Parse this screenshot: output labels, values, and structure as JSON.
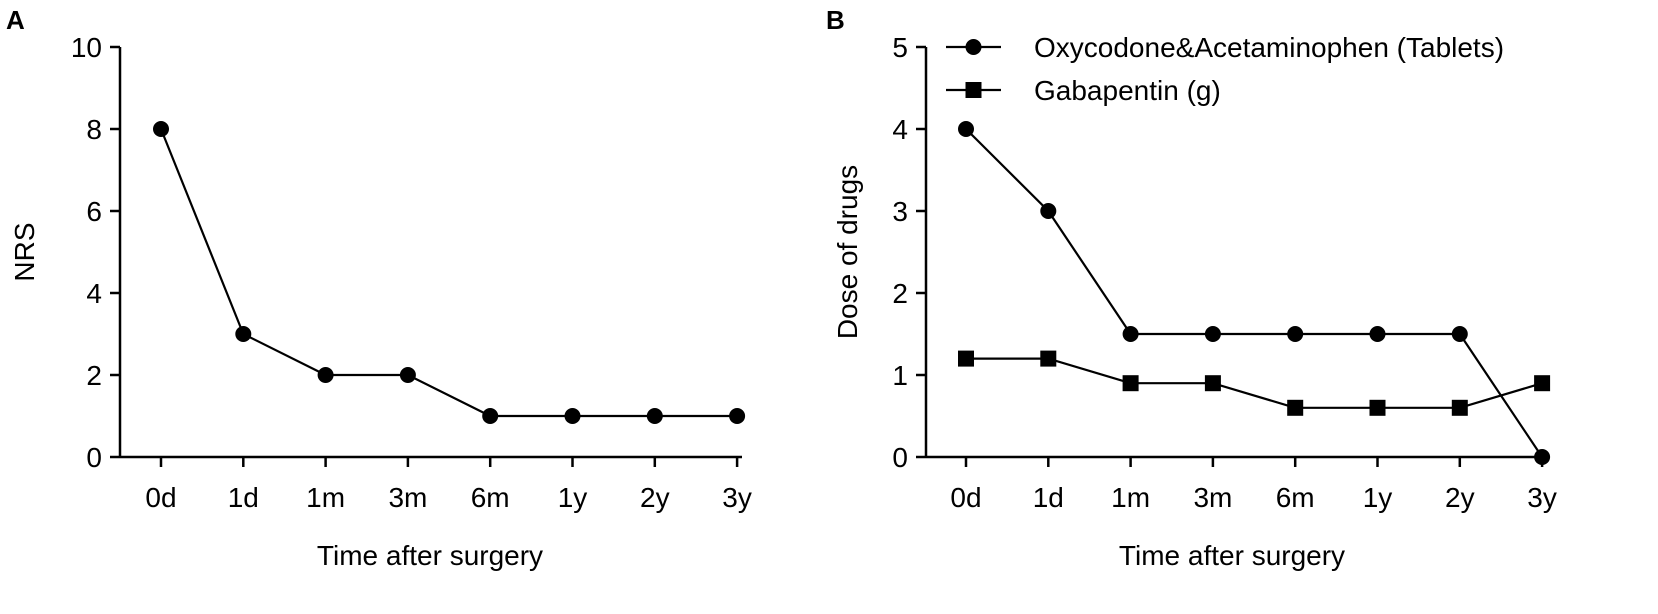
{
  "chart_data": [
    {
      "panel": "A",
      "type": "line",
      "categories": [
        "0d",
        "1d",
        "1m",
        "3m",
        "6m",
        "1y",
        "2y",
        "3y"
      ],
      "series": [
        {
          "name": "NRS",
          "marker": "circle",
          "values": [
            8,
            3,
            2,
            2,
            1,
            1,
            1,
            1
          ]
        }
      ],
      "ylabel": "NRS",
      "xlabel": "Time after surgery",
      "ylim": [
        0,
        10
      ],
      "yticks": [
        0,
        2,
        4,
        6,
        8,
        10
      ],
      "legend": null
    },
    {
      "panel": "B",
      "type": "line",
      "categories": [
        "0d",
        "1d",
        "1m",
        "3m",
        "6m",
        "1y",
        "2y",
        "3y"
      ],
      "series": [
        {
          "name": "Oxycodone&Acetaminophen (Tablets)",
          "marker": "circle",
          "values": [
            4,
            3,
            1.5,
            1.5,
            1.5,
            1.5,
            1.5,
            0
          ]
        },
        {
          "name": "Gabapentin (g)",
          "marker": "square",
          "values": [
            1.2,
            1.2,
            0.9,
            0.9,
            0.6,
            0.6,
            0.6,
            0.9
          ]
        }
      ],
      "ylabel": "Dose of drugs",
      "xlabel": "Time after surgery",
      "ylim": [
        0,
        5
      ],
      "yticks": [
        0,
        1,
        2,
        3,
        4,
        5
      ],
      "legend": "top-right"
    }
  ]
}
